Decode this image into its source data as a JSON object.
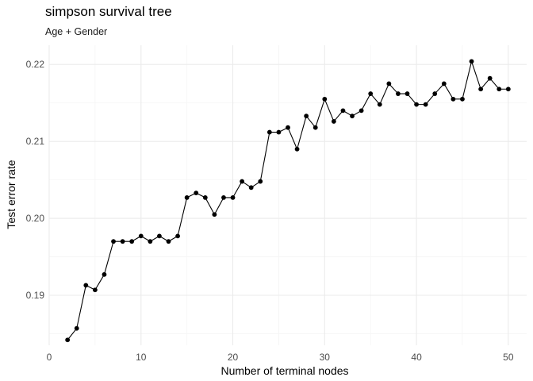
{
  "chart_data": {
    "type": "line",
    "title": "simpson survival tree",
    "subtitle": "Age + Gender",
    "xlabel": "Number of terminal nodes",
    "ylabel": "Test error rate",
    "xlim": [
      0,
      52
    ],
    "ylim": [
      0.1835,
      0.2225
    ],
    "x_ticks": [
      0,
      10,
      20,
      30,
      40,
      50
    ],
    "y_ticks": [
      0.19,
      0.2,
      0.21,
      0.22
    ],
    "y_tick_labels": [
      "0.19",
      "0.20",
      "0.21",
      "0.22"
    ],
    "grid": true,
    "legend": "none",
    "colors": {
      "line": "#000000",
      "point": "#000000",
      "grid_major": "#ebebeb",
      "grid_minor": "#f5f5f5"
    },
    "x": [
      2,
      3,
      4,
      5,
      6,
      7,
      8,
      9,
      10,
      11,
      12,
      13,
      14,
      15,
      16,
      17,
      18,
      19,
      20,
      21,
      22,
      23,
      24,
      25,
      26,
      27,
      28,
      29,
      30,
      31,
      32,
      33,
      34,
      35,
      36,
      37,
      38,
      39,
      40,
      41,
      42,
      43,
      44,
      45,
      46,
      47,
      48,
      49,
      50
    ],
    "y": [
      0.1842,
      0.1857,
      0.1913,
      0.1907,
      0.1927,
      0.197,
      0.197,
      0.197,
      0.1977,
      0.197,
      0.1977,
      0.197,
      0.1977,
      0.2027,
      0.2033,
      0.2027,
      0.2005,
      0.2027,
      0.2027,
      0.2048,
      0.204,
      0.2048,
      0.2112,
      0.2112,
      0.2118,
      0.209,
      0.2133,
      0.2118,
      0.2155,
      0.2126,
      0.214,
      0.2133,
      0.214,
      0.2162,
      0.2148,
      0.2175,
      0.2162,
      0.2162,
      0.2148,
      0.2148,
      0.2162,
      0.2175,
      0.2155,
      0.2155,
      0.2204,
      0.2168,
      0.2182,
      0.2168,
      0.2168
    ]
  }
}
